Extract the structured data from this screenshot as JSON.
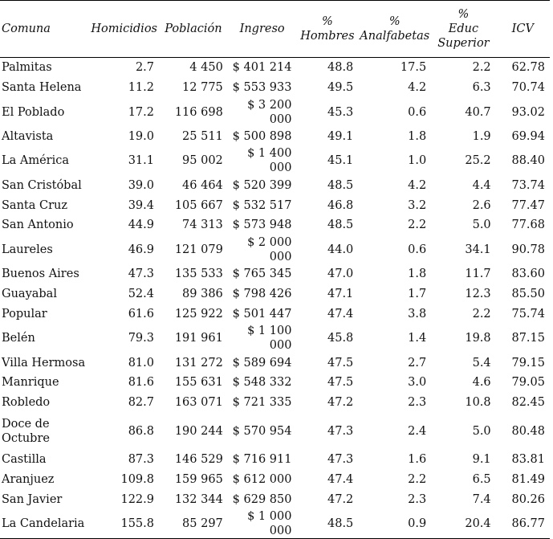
{
  "headers": [
    "Comuna",
    "Homicidios",
    "Población",
    "Ingreso",
    "% Hombres",
    "% Analfabetas",
    "% Educ Superior",
    "ICV"
  ],
  "header_lines": [
    [
      "Comuna"
    ],
    [
      "Homicidios"
    ],
    [
      "Población"
    ],
    [
      "Ingreso"
    ],
    [
      "%",
      "Hombres"
    ],
    [
      "%",
      "Analfabetas"
    ],
    [
      "%",
      "Educ",
      "Superior"
    ],
    [
      "ICV"
    ]
  ],
  "rows": [
    [
      "Palmitas",
      "2.7",
      "4 450",
      "$ 401 214",
      "48.8",
      "17.5",
      "2.2",
      "62.78"
    ],
    [
      "Santa Helena",
      "11.2",
      "12 775",
      "$ 553 933",
      "49.5",
      "4.2",
      "6.3",
      "70.74"
    ],
    [
      "El Poblado",
      "17.2",
      "116 698",
      "$ 3 200 000",
      "45.3",
      "0.6",
      "40.7",
      "93.02"
    ],
    [
      "Altavista",
      "19.0",
      "25 511",
      "$ 500 898",
      "49.1",
      "1.8",
      "1.9",
      "69.94"
    ],
    [
      "La América",
      "31.1",
      "95 002",
      "$ 1 400 000",
      "45.1",
      "1.0",
      "25.2",
      "88.40"
    ],
    [
      "San Cristóbal",
      "39.0",
      "46 464",
      "$ 520 399",
      "48.5",
      "4.2",
      "4.4",
      "73.74"
    ],
    [
      "Santa Cruz",
      "39.4",
      "105 667",
      "$ 532 517",
      "46.8",
      "3.2",
      "2.6",
      "77.47"
    ],
    [
      "San Antonio",
      "44.9",
      "74 313",
      "$ 573 948",
      "48.5",
      "2.2",
      "5.0",
      "77.68"
    ],
    [
      "Laureles",
      "46.9",
      "121 079",
      "$ 2 000 000",
      "44.0",
      "0.6",
      "34.1",
      "90.78"
    ],
    [
      "Buenos Aires",
      "47.3",
      "135 533",
      "$ 765 345",
      "47.0",
      "1.8",
      "11.7",
      "83.60"
    ],
    [
      "Guayabal",
      "52.4",
      "89 386",
      "$ 798 426",
      "47.1",
      "1.7",
      "12.3",
      "85.50"
    ],
    [
      "Popular",
      "61.6",
      "125 922",
      "$ 501 447",
      "47.4",
      "3.8",
      "2.2",
      "75.74"
    ],
    [
      "Belén",
      "79.3",
      "191 961",
      "$ 1 100 000",
      "45.8",
      "1.4",
      "19.8",
      "87.15"
    ],
    [
      "Villa Hermosa",
      "81.0",
      "131 272",
      "$ 589 694",
      "47.5",
      "2.7",
      "5.4",
      "79.15"
    ],
    [
      "Manrique",
      "81.6",
      "155 631",
      "$ 548 332",
      "47.5",
      "3.0",
      "4.6",
      "79.05"
    ],
    [
      "Robledo",
      "82.7",
      "163 071",
      "$ 721 335",
      "47.2",
      "2.3",
      "10.8",
      "82.45"
    ],
    [
      "Doce de Octubre",
      "86.8",
      "190 244",
      "$ 570 954",
      "47.3",
      "2.4",
      "5.0",
      "80.48"
    ],
    [
      "Castilla",
      "87.3",
      "146 529",
      "$ 716 911",
      "47.3",
      "1.6",
      "9.1",
      "83.81"
    ],
    [
      "Aranjuez",
      "109.8",
      "159 965",
      "$ 612 000",
      "47.4",
      "2.2",
      "6.5",
      "81.49"
    ],
    [
      "San Javier",
      "122.9",
      "132 344",
      "$ 629 850",
      "47.2",
      "2.3",
      "7.4",
      "80.26"
    ],
    [
      "La Candelaria",
      "155.8",
      "85 297",
      "$ 1 000 000",
      "48.5",
      "0.9",
      "20.4",
      "86.77"
    ]
  ]
}
